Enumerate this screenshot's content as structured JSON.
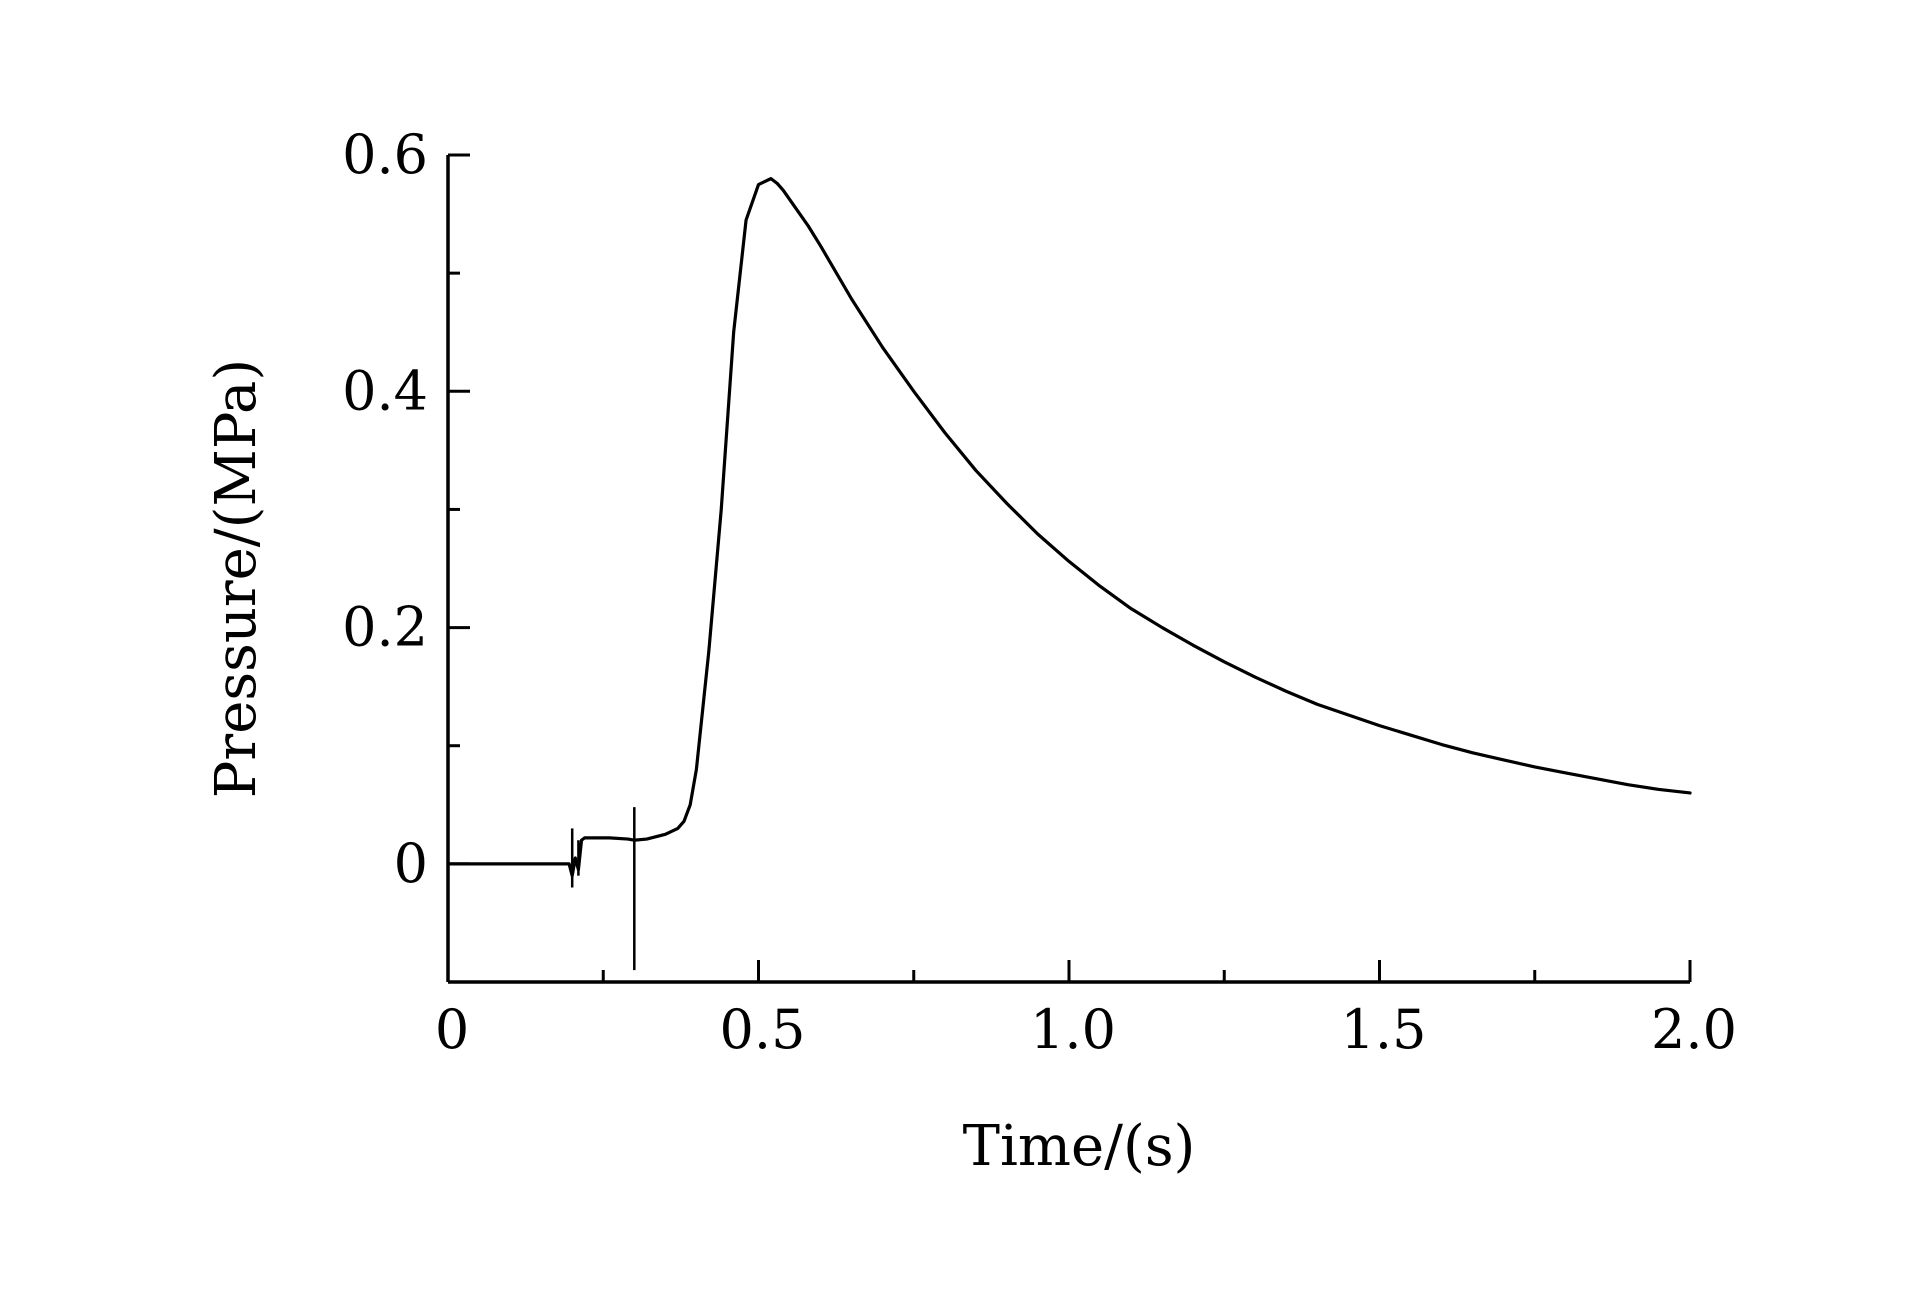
{
  "chart_data": {
    "type": "line",
    "title": "",
    "xlabel": "Time/(s)",
    "ylabel": "Pressure/(MPa)",
    "xlim": [
      0,
      2.0
    ],
    "ylim": [
      -0.1,
      0.6
    ],
    "grid": false,
    "legend": "none",
    "x_ticks": [
      {
        "value": 0,
        "label": "0"
      },
      {
        "value": 0.5,
        "label": "0.5"
      },
      {
        "value": 1.0,
        "label": "1.0"
      },
      {
        "value": 1.5,
        "label": "1.5"
      },
      {
        "value": 2.0,
        "label": "2.0"
      }
    ],
    "x_minor_ticks": [
      0.25,
      0.75,
      1.25,
      1.75
    ],
    "y_ticks": [
      {
        "value": 0,
        "label": "0"
      },
      {
        "value": 0.2,
        "label": "0.2"
      },
      {
        "value": 0.4,
        "label": "0.4"
      },
      {
        "value": 0.6,
        "label": "0.6"
      }
    ],
    "y_minor_ticks": [
      0.1,
      0.3,
      0.5
    ],
    "series": [
      {
        "color": "#000000",
        "x": [
          0,
          0.195,
          0.2,
          0.205,
          0.21,
          0.215,
          0.22,
          0.26,
          0.29,
          0.3,
          0.32,
          0.35,
          0.37,
          0.38,
          0.39,
          0.4,
          0.42,
          0.44,
          0.46,
          0.48,
          0.5,
          0.52,
          0.53,
          0.54,
          0.56,
          0.58,
          0.6,
          0.65,
          0.7,
          0.75,
          0.8,
          0.85,
          0.9,
          0.95,
          1.0,
          1.05,
          1.1,
          1.15,
          1.2,
          1.25,
          1.3,
          1.35,
          1.4,
          1.45,
          1.5,
          1.55,
          1.6,
          1.65,
          1.7,
          1.75,
          1.8,
          1.85,
          1.9,
          1.95,
          2.0
        ],
        "y": [
          0,
          0,
          -0.01,
          0.005,
          -0.005,
          0.02,
          0.022,
          0.022,
          0.021,
          0.02,
          0.021,
          0.025,
          0.03,
          0.036,
          0.05,
          0.08,
          0.18,
          0.3,
          0.45,
          0.545,
          0.575,
          0.58,
          0.576,
          0.57,
          0.555,
          0.54,
          0.523,
          0.478,
          0.437,
          0.4,
          0.365,
          0.333,
          0.305,
          0.279,
          0.256,
          0.235,
          0.216,
          0.2,
          0.185,
          0.171,
          0.158,
          0.146,
          0.135,
          0.126,
          0.117,
          0.109,
          0.101,
          0.094,
          0.088,
          0.082,
          0.077,
          0.072,
          0.067,
          0.063,
          0.06
        ]
      }
    ],
    "spikes": [
      {
        "x": 0.2,
        "y_min": -0.02,
        "y_max": 0.03
      },
      {
        "x": 0.21,
        "y_min": -0.01,
        "y_max": 0.02
      },
      {
        "x": 0.3,
        "y_min": -0.09,
        "y_max": 0.048
      }
    ]
  }
}
